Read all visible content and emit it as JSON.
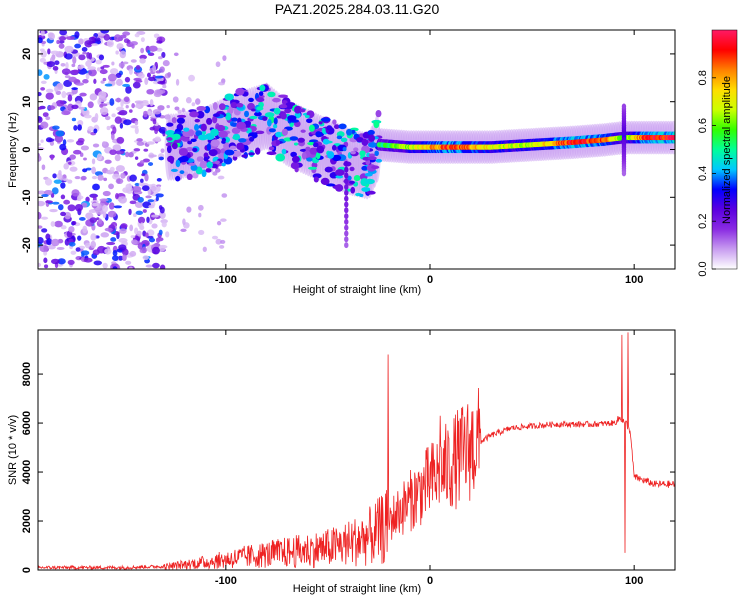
{
  "title": "PAZ1.2025.284.03.11.G20",
  "chart_data": [
    {
      "type": "heatmap",
      "name": "spectrogram",
      "xlabel": "Height of straight line (km)",
      "ylabel": "Frequency (Hz)",
      "xlim": [
        -192,
        120
      ],
      "ylim": [
        -25,
        25
      ],
      "xticks": [
        -100,
        0,
        100
      ],
      "yticks": [
        -20,
        -10,
        0,
        10,
        20
      ],
      "grid": false,
      "colorbar": {
        "label": "Normalized spectral amplitude",
        "range": [
          0,
          1
        ],
        "ticks": [
          0.0,
          0.2,
          0.4,
          0.6,
          0.8
        ],
        "colormap": [
          "#ffffff",
          "#c89cf0",
          "#8a2be2",
          "#5a00e0",
          "#0000ff",
          "#00c8ff",
          "#00ff99",
          "#33ff00",
          "#ccff00",
          "#ffdd00",
          "#ff8000",
          "#ff0000",
          "#ff1a66"
        ]
      },
      "ridge": [
        {
          "x": -125,
          "f": 0.5,
          "a": 0.45
        },
        {
          "x": -110,
          "f": 2.0,
          "a": 0.4
        },
        {
          "x": -95,
          "f": 5.0,
          "a": 0.4
        },
        {
          "x": -80,
          "f": 7.0,
          "a": 0.45
        },
        {
          "x": -70,
          "f": 3.5,
          "a": 0.45
        },
        {
          "x": -60,
          "f": 1.5,
          "a": 0.45
        },
        {
          "x": -50,
          "f": -0.5,
          "a": 0.45
        },
        {
          "x": -40,
          "f": -2.5,
          "a": 0.45
        },
        {
          "x": -30,
          "f": -3.5,
          "a": 0.45
        },
        {
          "x": -25,
          "f": 1.0,
          "a": 0.5
        },
        {
          "x": -10,
          "f": 0.5,
          "a": 0.65
        },
        {
          "x": 10,
          "f": 0.5,
          "a": 0.9
        },
        {
          "x": 30,
          "f": 0.5,
          "a": 0.7
        },
        {
          "x": 50,
          "f": 1.0,
          "a": 0.65
        },
        {
          "x": 70,
          "f": 1.5,
          "a": 0.95
        },
        {
          "x": 85,
          "f": 2.0,
          "a": 0.85
        },
        {
          "x": 95,
          "f": 2.5,
          "a": 0.55
        },
        {
          "x": 105,
          "f": 2.5,
          "a": 0.9
        },
        {
          "x": 120,
          "f": 2.5,
          "a": 0.95
        }
      ],
      "noise_region": {
        "x": [
          -192,
          -130
        ],
        "f": [
          -25,
          25
        ],
        "a_max": 0.35
      }
    },
    {
      "type": "line",
      "name": "snr",
      "xlabel": "Height of straight line (km)",
      "ylabel": "SNR (10 * v/v)",
      "xlim": [
        -192,
        120
      ],
      "ylim": [
        0,
        9800
      ],
      "xticks": [
        -100,
        0,
        100
      ],
      "yticks": [
        0,
        2000,
        4000,
        6000,
        8000
      ],
      "grid": false,
      "color": "#ee2222",
      "envelope": {
        "x": [
          -192,
          -150,
          -130,
          -110,
          -90,
          -70,
          -50,
          -40,
          -30,
          -20,
          -10,
          0,
          10,
          20,
          30,
          40,
          60,
          80,
          90,
          93,
          96,
          98,
          100,
          110,
          120
        ],
        "y": [
          100,
          100,
          150,
          350,
          600,
          800,
          1000,
          1200,
          1500,
          2000,
          2800,
          3600,
          4300,
          5000,
          5500,
          5800,
          5950,
          5950,
          6000,
          6200,
          6000,
          5700,
          3800,
          3500,
          3500
        ]
      },
      "spikes": [
        {
          "x": -20.5,
          "y": 8800
        },
        {
          "x": 5,
          "y": 6300
        },
        {
          "x": 94,
          "y": 9600
        },
        {
          "x": 95.5,
          "y": 700
        },
        {
          "x": 97,
          "y": 9700
        }
      ]
    }
  ]
}
